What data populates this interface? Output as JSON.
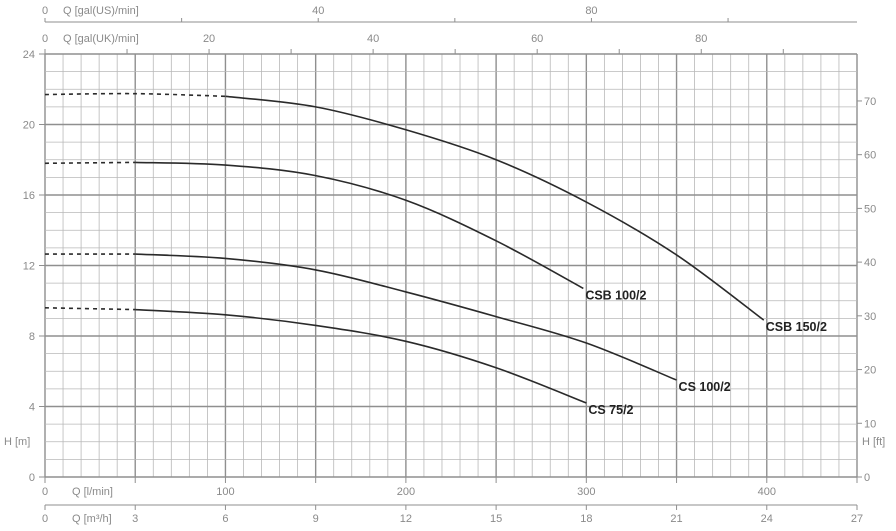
{
  "chart_data": {
    "type": "line",
    "title": "",
    "x_axes": {
      "m3h": {
        "label": "Q [m³/h]",
        "range": [
          0,
          27
        ],
        "ticks": [
          0,
          3,
          6,
          9,
          12,
          15,
          18,
          21,
          24,
          27
        ]
      },
      "lmin": {
        "label": "Q [l/min]",
        "range": [
          0,
          450
        ],
        "ticks": [
          0,
          100,
          200,
          300,
          400
        ]
      },
      "galUK": {
        "label": "Q [gal(UK)/min]",
        "ticks": [
          0,
          20,
          40,
          60,
          80
        ]
      },
      "galUS": {
        "label": "Q [gal(US)/min]",
        "ticks": [
          0,
          40,
          80
        ]
      }
    },
    "y_axes": {
      "m": {
        "label": "H [m]",
        "range": [
          0,
          24
        ],
        "ticks": [
          0,
          4,
          8,
          12,
          16,
          20,
          24
        ]
      },
      "ft": {
        "label": "H [ft]",
        "ticks": [
          0,
          10,
          20,
          30,
          40,
          50,
          60,
          70
        ]
      }
    },
    "grid": true,
    "series": [
      {
        "name": "CSB 150/2",
        "dashed_until": 6,
        "x": [
          0,
          3,
          6,
          9,
          12,
          15,
          18,
          21,
          23.9
        ],
        "y": [
          21.7,
          21.75,
          21.6,
          21.0,
          19.7,
          18.0,
          15.6,
          12.6,
          8.9
        ]
      },
      {
        "name": "CSB 100/2",
        "dashed_until": 3,
        "x": [
          0,
          3,
          6,
          9,
          12,
          15,
          17.9
        ],
        "y": [
          17.8,
          17.85,
          17.7,
          17.1,
          15.7,
          13.4,
          10.7
        ]
      },
      {
        "name": "CS 100/2",
        "dashed_until": 3,
        "x": [
          0,
          3,
          6,
          9,
          12,
          15,
          18,
          21
        ],
        "y": [
          12.65,
          12.65,
          12.4,
          11.75,
          10.5,
          9.1,
          7.6,
          5.5
        ]
      },
      {
        "name": "CS 75/2",
        "dashed_until": 3,
        "x": [
          0,
          3,
          6,
          9,
          12,
          15,
          18
        ],
        "y": [
          9.6,
          9.5,
          9.2,
          8.6,
          7.7,
          6.2,
          4.2
        ]
      }
    ],
    "colors": {
      "curve": "#2a2a2a",
      "grid": "#b8b8b8",
      "grid_major": "#8f8f8f",
      "axis_text": "#8a8a8a"
    }
  }
}
